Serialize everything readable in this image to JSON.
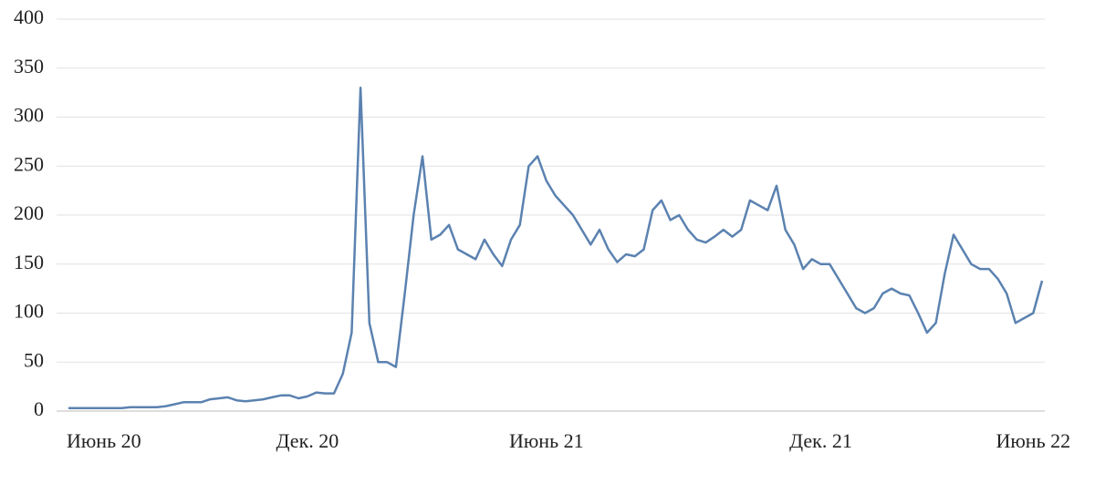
{
  "chart_data": {
    "type": "line",
    "categories": [
      null,
      null,
      null,
      null,
      "Июнь 20",
      null,
      null,
      null,
      null,
      null,
      null,
      null,
      null,
      null,
      null,
      null,
      null,
      null,
      null,
      null,
      null,
      null,
      null,
      null,
      null,
      null,
      null,
      "Дек. 20",
      null,
      null,
      null,
      null,
      null,
      null,
      null,
      null,
      null,
      null,
      null,
      null,
      null,
      null,
      null,
      null,
      null,
      null,
      null,
      null,
      null,
      null,
      null,
      null,
      null,
      null,
      "Июнь 21",
      null,
      null,
      null,
      null,
      null,
      null,
      null,
      null,
      null,
      null,
      null,
      null,
      null,
      null,
      null,
      null,
      null,
      null,
      null,
      null,
      null,
      null,
      null,
      null,
      null,
      null,
      null,
      null,
      null,
      null,
      "Дек. 21",
      null,
      null,
      null,
      null,
      null,
      null,
      null,
      null,
      null,
      null,
      null,
      null,
      null,
      null,
      null,
      null,
      null,
      null,
      null,
      null,
      null,
      null,
      null,
      "Июнь 22",
      null
    ],
    "series": [
      {
        "color": "#5b82b0",
        "values": [
          3,
          3,
          3,
          3,
          3,
          3,
          3,
          4,
          4,
          4,
          4,
          5,
          7,
          9,
          9,
          9,
          12,
          13,
          14,
          11,
          10,
          11,
          12,
          14,
          16,
          16,
          13,
          15,
          19,
          18,
          18,
          38,
          80,
          330,
          90,
          50,
          50,
          45,
          120,
          200,
          260,
          175,
          180,
          190,
          165,
          160,
          155,
          175,
          160,
          148,
          175,
          190,
          250,
          260,
          235,
          220,
          210,
          200,
          185,
          170,
          185,
          165,
          152,
          160,
          158,
          165,
          205,
          215,
          195,
          200,
          185,
          175,
          172,
          178,
          185,
          178,
          185,
          215,
          210,
          205,
          230,
          185,
          170,
          145,
          155,
          150,
          150,
          135,
          120,
          105,
          100,
          105,
          120,
          125,
          120,
          118,
          100,
          80,
          90,
          140,
          180,
          165,
          150,
          145,
          145,
          135,
          120,
          90,
          95,
          100,
          133
        ]
      }
    ],
    "ylim": [
      0,
      400
    ],
    "yticks": [
      0,
      50,
      100,
      150,
      200,
      250,
      300,
      350,
      400
    ],
    "grid": true
  }
}
